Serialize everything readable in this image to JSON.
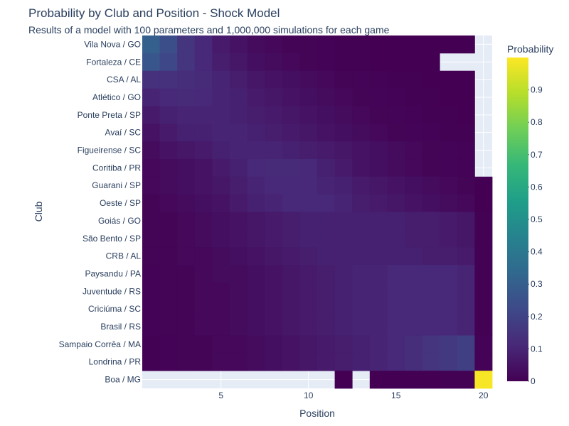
{
  "chart_data": {
    "type": "heatmap",
    "title": "Probability by Club and Position - Shock Model",
    "subtitle": "Results of a model with 100 parameters and 1,000,000 simulations for each game",
    "xlabel": "Position",
    "ylabel": "Club",
    "x": [
      1,
      2,
      3,
      4,
      5,
      6,
      7,
      8,
      9,
      10,
      11,
      12,
      13,
      14,
      15,
      16,
      17,
      18,
      19,
      20
    ],
    "x_tick_labels": [
      "5",
      "10",
      "15",
      "20"
    ],
    "x_tick_values": [
      5,
      10,
      15,
      20
    ],
    "xlim": [
      0.5,
      20.5
    ],
    "colorscale": "Viridis",
    "colorbar": {
      "title": "Probability",
      "range": [
        0,
        1
      ],
      "ticks": [
        "0",
        "0.1",
        "0.2",
        "0.3",
        "0.4",
        "0.5",
        "0.6",
        "0.7",
        "0.8",
        "0.9"
      ],
      "tick_values": [
        0,
        0.1,
        0.2,
        0.3,
        0.4,
        0.5,
        0.6,
        0.7,
        0.8,
        0.9
      ]
    },
    "clubs": [
      "Vila Nova / GO",
      "Fortaleza / CE",
      "CSA / AL",
      "Atlético / GO",
      "Ponte Preta / SP",
      "Avaí / SC",
      "Figueirense / SC",
      "Coritiba / PR",
      "Guarani / SP",
      "Oeste / SP",
      "Goiás / GO",
      "São Bento / SP",
      "CRB / AL",
      "Paysandu / PA",
      "Juventude / RS",
      "Criciúma / SC",
      "Brasil / RS",
      "Sampaio Corrêa / MA",
      "Londrina / PR",
      "Boa / MG"
    ],
    "z": [
      [
        0.3,
        0.24,
        0.15,
        0.11,
        0.07,
        0.05,
        0.03,
        0.02,
        0.01,
        0.01,
        0.005,
        0.003,
        0.002,
        0.001,
        0.001,
        0.0005,
        0.0003,
        0.0002,
        0.0001,
        null
      ],
      [
        0.27,
        0.22,
        0.15,
        0.11,
        0.08,
        0.06,
        0.04,
        0.03,
        0.02,
        0.01,
        0.005,
        0.003,
        0.002,
        0.001,
        0.001,
        0.0005,
        0.0003,
        null,
        null,
        null
      ],
      [
        0.14,
        0.14,
        0.13,
        0.12,
        0.1,
        0.08,
        0.06,
        0.05,
        0.04,
        0.03,
        0.02,
        0.01,
        0.008,
        0.005,
        0.003,
        0.002,
        0.001,
        0.0005,
        0.0002,
        null
      ],
      [
        0.1,
        0.11,
        0.12,
        0.11,
        0.1,
        0.09,
        0.07,
        0.06,
        0.05,
        0.04,
        0.03,
        0.02,
        0.01,
        0.008,
        0.005,
        0.003,
        0.002,
        0.001,
        0.0005,
        null
      ],
      [
        0.07,
        0.09,
        0.1,
        0.1,
        0.1,
        0.09,
        0.08,
        0.07,
        0.06,
        0.05,
        0.04,
        0.03,
        0.02,
        0.01,
        0.008,
        0.005,
        0.003,
        0.002,
        0.001,
        null
      ],
      [
        0.05,
        0.07,
        0.09,
        0.09,
        0.1,
        0.1,
        0.09,
        0.08,
        0.07,
        0.06,
        0.05,
        0.04,
        0.03,
        0.02,
        0.01,
        0.008,
        0.005,
        0.003,
        0.002,
        null
      ],
      [
        0.03,
        0.05,
        0.06,
        0.07,
        0.09,
        0.1,
        0.1,
        0.1,
        0.09,
        0.08,
        0.07,
        0.06,
        0.05,
        0.04,
        0.03,
        0.02,
        0.01,
        0.008,
        0.005,
        null
      ],
      [
        0.02,
        0.03,
        0.04,
        0.05,
        0.07,
        0.09,
        0.11,
        0.12,
        0.12,
        0.11,
        0.09,
        0.07,
        0.05,
        0.04,
        0.03,
        0.02,
        0.01,
        0.008,
        0.005,
        null
      ],
      [
        0.02,
        0.03,
        0.04,
        0.05,
        0.06,
        0.08,
        0.1,
        0.11,
        0.11,
        0.11,
        0.1,
        0.09,
        0.07,
        0.06,
        0.05,
        0.04,
        0.03,
        0.02,
        0.01,
        0.001
      ],
      [
        0.01,
        0.02,
        0.03,
        0.04,
        0.05,
        0.07,
        0.09,
        0.1,
        0.11,
        0.11,
        0.11,
        0.1,
        0.08,
        0.07,
        0.06,
        0.05,
        0.04,
        0.03,
        0.02,
        0.001
      ],
      [
        0.01,
        0.01,
        0.02,
        0.03,
        0.04,
        0.05,
        0.06,
        0.07,
        0.08,
        0.09,
        0.09,
        0.09,
        0.09,
        0.09,
        0.09,
        0.08,
        0.08,
        0.07,
        0.06,
        0.002
      ],
      [
        0.01,
        0.01,
        0.02,
        0.03,
        0.04,
        0.05,
        0.06,
        0.07,
        0.08,
        0.09,
        0.09,
        0.09,
        0.09,
        0.09,
        0.09,
        0.08,
        0.08,
        0.07,
        0.06,
        0.002
      ],
      [
        0.01,
        0.01,
        0.02,
        0.02,
        0.03,
        0.04,
        0.05,
        0.06,
        0.07,
        0.08,
        0.09,
        0.09,
        0.09,
        0.09,
        0.09,
        0.09,
        0.08,
        0.08,
        0.07,
        0.002
      ],
      [
        0.005,
        0.01,
        0.01,
        0.02,
        0.03,
        0.03,
        0.04,
        0.05,
        0.06,
        0.07,
        0.08,
        0.09,
        0.1,
        0.1,
        0.11,
        0.11,
        0.11,
        0.11,
        0.1,
        0.003
      ],
      [
        0.005,
        0.01,
        0.01,
        0.02,
        0.02,
        0.03,
        0.04,
        0.05,
        0.06,
        0.07,
        0.08,
        0.09,
        0.1,
        0.1,
        0.11,
        0.11,
        0.11,
        0.11,
        0.1,
        0.003
      ],
      [
        0.005,
        0.01,
        0.01,
        0.02,
        0.02,
        0.03,
        0.04,
        0.05,
        0.06,
        0.07,
        0.08,
        0.09,
        0.1,
        0.1,
        0.11,
        0.11,
        0.11,
        0.11,
        0.1,
        0.003
      ],
      [
        0.005,
        0.01,
        0.01,
        0.02,
        0.02,
        0.03,
        0.04,
        0.05,
        0.06,
        0.07,
        0.08,
        0.09,
        0.1,
        0.1,
        0.11,
        0.11,
        0.11,
        0.11,
        0.1,
        0.003
      ],
      [
        0.003,
        0.005,
        0.01,
        0.01,
        0.02,
        0.02,
        0.03,
        0.04,
        0.05,
        0.06,
        0.07,
        0.08,
        0.09,
        0.1,
        0.11,
        0.13,
        0.15,
        0.17,
        0.19,
        0.005
      ],
      [
        0.003,
        0.005,
        0.01,
        0.01,
        0.02,
        0.02,
        0.03,
        0.04,
        0.05,
        0.06,
        0.07,
        0.08,
        0.09,
        0.1,
        0.11,
        0.13,
        0.15,
        0.17,
        0.19,
        0.005
      ],
      [
        null,
        null,
        null,
        null,
        null,
        null,
        null,
        null,
        null,
        null,
        null,
        0.001,
        null,
        0.001,
        0.001,
        0.001,
        0.001,
        0.002,
        0.003,
        0.99
      ]
    ]
  }
}
